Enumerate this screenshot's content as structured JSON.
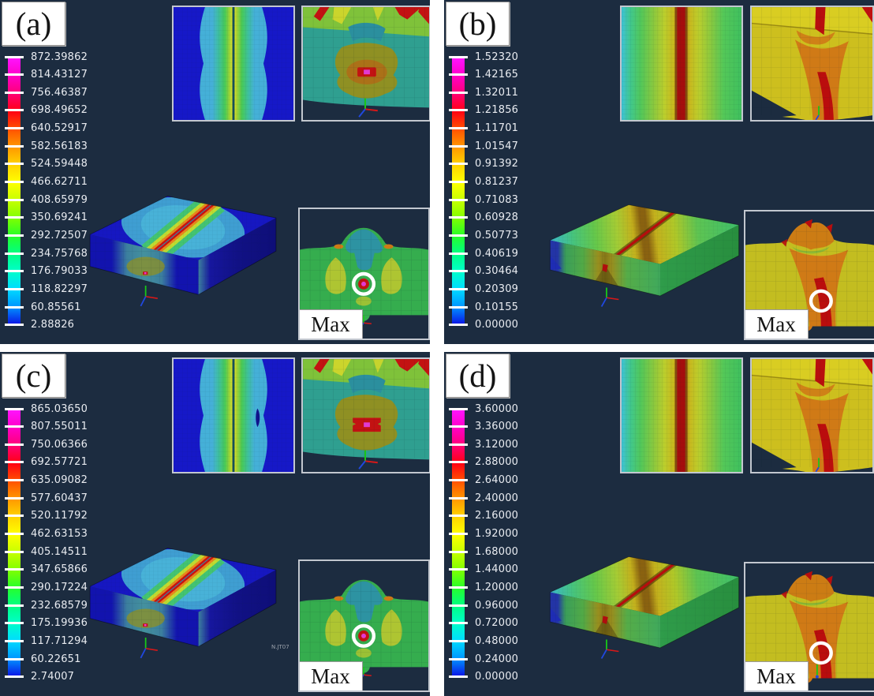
{
  "figure": {
    "background": "#ffffff",
    "panel_background": "#1c2c40",
    "max_label": "Max"
  },
  "colorbar_colors": [
    "#ff14ff",
    "#ff00c8",
    "#ff0078",
    "#ff0014",
    "#ff5000",
    "#ff9600",
    "#ffd200",
    "#ffff00",
    "#c8ff00",
    "#82ff00",
    "#28ff28",
    "#00ff82",
    "#00ffc8",
    "#00dcff",
    "#0096ff",
    "#0a14e6"
  ],
  "panels": [
    {
      "id": "a",
      "label": "(a)",
      "variant": "cool",
      "legend": [
        "872.39862",
        "814.43127",
        "756.46387",
        "698.49652",
        "640.52917",
        "582.56183",
        "524.59448",
        "466.62711",
        "408.65979",
        "350.69241",
        "292.72507",
        "234.75768",
        "176.79033",
        "118.82297",
        "60.85561",
        "2.88826"
      ]
    },
    {
      "id": "b",
      "label": "(b)",
      "variant": "warm",
      "legend": [
        "1.52320",
        "1.42165",
        "1.32011",
        "1.21856",
        "1.11701",
        "1.01547",
        "0.91392",
        "0.81237",
        "0.71083",
        "0.60928",
        "0.50773",
        "0.40619",
        "0.30464",
        "0.20309",
        "0.10155",
        "0.00000"
      ]
    },
    {
      "id": "c",
      "label": "(c)",
      "variant": "cool",
      "watermark": "N.JT07",
      "legend": [
        "865.03650",
        "807.55011",
        "750.06366",
        "692.57721",
        "635.09082",
        "577.60437",
        "520.11792",
        "462.63153",
        "405.14511",
        "347.65866",
        "290.17224",
        "232.68579",
        "175.19936",
        "117.71294",
        "60.22651",
        "2.74007"
      ]
    },
    {
      "id": "d",
      "label": "(d)",
      "variant": "warm",
      "legend": [
        "3.60000",
        "3.36000",
        "3.12000",
        "2.88000",
        "2.64000",
        "2.40000",
        "2.16000",
        "1.92000",
        "1.68000",
        "1.44000",
        "1.20000",
        "0.96000",
        "0.72000",
        "0.48000",
        "0.24000",
        "0.00000"
      ]
    }
  ]
}
